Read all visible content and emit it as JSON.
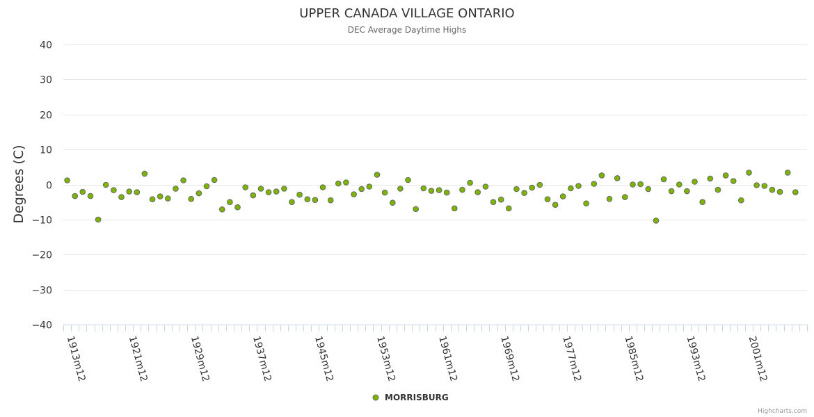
{
  "chart_data": {
    "type": "scatter",
    "title": "UPPER CANADA VILLAGE ONTARIO",
    "subtitle": "DEC Average Daytime Highs",
    "ylabel": "Degrees (C)",
    "xlabel": "",
    "ylim": [
      -40,
      40
    ],
    "yticks": [
      "40",
      "30",
      "20",
      "10",
      "0",
      "−10",
      "−20",
      "−30",
      "−40"
    ],
    "ytick_values": [
      40,
      30,
      20,
      10,
      0,
      -10,
      -20,
      -30,
      -40
    ],
    "start_year": 1913,
    "end_year": 2008,
    "category_suffix": "m12",
    "xtick_labels": [
      "1913m12",
      "1921m12",
      "1929m12",
      "1937m12",
      "1945m12",
      "1953m12",
      "1961m12",
      "1969m12",
      "1977m12",
      "1985m12",
      "1993m12",
      "2001m12"
    ],
    "series": [
      {
        "name": "MORRISBURG",
        "color": "#7cb500",
        "values": [
          1.2,
          -3.3,
          -2.1,
          -3.3,
          -10.0,
          -0.1,
          -1.6,
          -3.6,
          -2.0,
          -2.2,
          3.1,
          -4.2,
          -3.4,
          -4.0,
          -1.2,
          1.2,
          -4.1,
          -2.5,
          -0.5,
          1.3,
          -7.1,
          -5.0,
          -6.5,
          -0.8,
          -3.1,
          -1.2,
          -2.2,
          -2.0,
          -1.2,
          -5.0,
          -2.9,
          -4.2,
          -4.4,
          -0.8,
          -4.5,
          0.3,
          0.6,
          -2.8,
          -1.3,
          -0.6,
          2.8,
          -2.3,
          -5.2,
          -1.2,
          1.3,
          -7.0,
          -1.1,
          -1.8,
          -1.6,
          -2.3,
          -6.8,
          -1.5,
          0.5,
          -2.2,
          -0.6,
          -5.0,
          -4.3,
          -6.8,
          -1.3,
          -2.4,
          -0.9,
          -0.1,
          -4.2,
          -5.8,
          -3.4,
          -1.1,
          -0.4,
          -5.4,
          0.2,
          2.6,
          -4.1,
          1.8,
          -3.6,
          0.0,
          0.1,
          -1.3,
          -10.3,
          1.5,
          -1.9,
          0.0,
          -1.9,
          0.8,
          -5.0,
          1.7,
          -1.5,
          2.6,
          1.0,
          -4.5,
          3.4,
          -0.2,
          -0.4,
          -1.5,
          -2.1,
          3.4,
          -2.2
        ]
      }
    ],
    "legend": {
      "position": "bottom-center"
    }
  },
  "credits": "Highcharts.com"
}
